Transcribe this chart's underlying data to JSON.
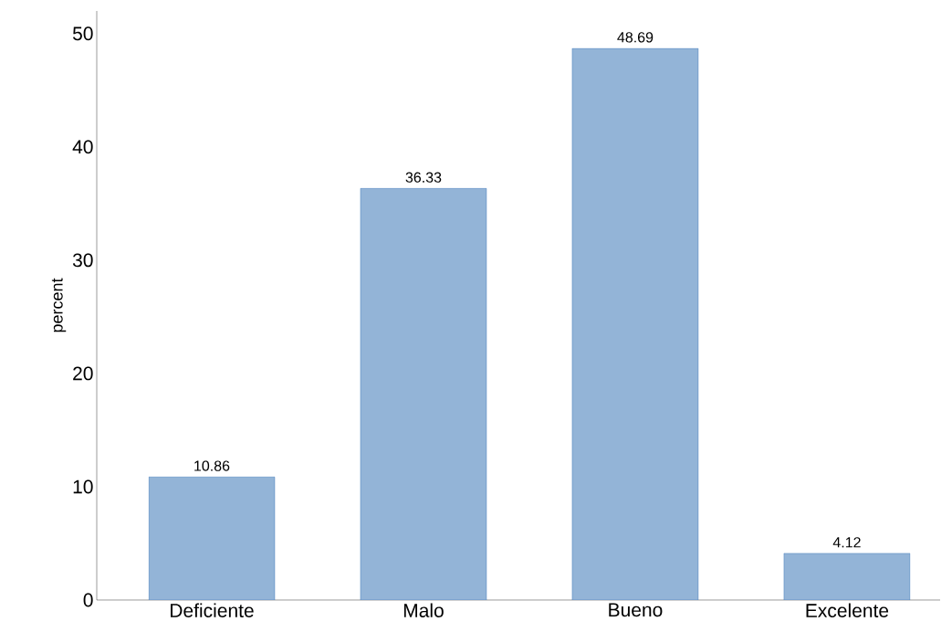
{
  "chart_data": {
    "type": "bar",
    "ylabel": "percent",
    "categories": [
      "Deficiente",
      "Malo",
      "Bueno",
      "Excelente"
    ],
    "values": [
      10.86,
      36.33,
      48.69,
      4.12
    ],
    "color": "#93b4d7",
    "ylim": [
      0,
      52
    ],
    "yticks": [
      0,
      10,
      20,
      30,
      40,
      50
    ],
    "data_labels": true
  }
}
